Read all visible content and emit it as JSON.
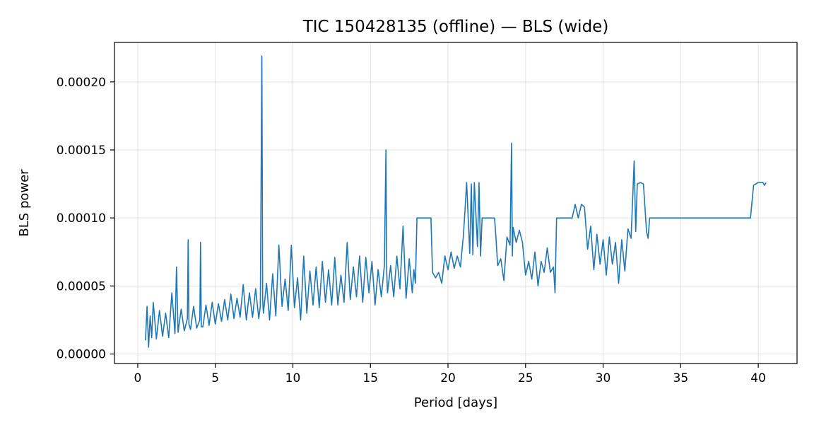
{
  "chart_data": {
    "type": "line",
    "title": "TIC 150428135 (offline) — BLS (wide)",
    "xlabel": "Period [days]",
    "ylabel": "BLS power",
    "xlim": [
      -1.5,
      42.5
    ],
    "ylim": [
      -7e-06,
      0.000229
    ],
    "xticks": [
      0,
      5,
      10,
      15,
      20,
      25,
      30,
      35,
      40
    ],
    "xtick_labels": [
      "0",
      "5",
      "10",
      "15",
      "20",
      "25",
      "30",
      "35",
      "40"
    ],
    "yticks": [
      0,
      5e-05,
      0.0001,
      0.00015,
      0.0002
    ],
    "ytick_labels": [
      "0.00000",
      "0.00005",
      "0.00010",
      "0.00015",
      "0.00020"
    ],
    "grid": true,
    "line_color": "#1f77b4",
    "x": [
      0.5,
      0.6,
      0.7,
      0.8,
      0.9,
      1.0,
      1.2,
      1.4,
      1.6,
      1.8,
      2.0,
      2.2,
      2.4,
      2.5,
      2.6,
      2.8,
      3.0,
      3.2,
      3.25,
      3.3,
      3.4,
      3.6,
      3.8,
      4.0,
      4.05,
      4.1,
      4.2,
      4.4,
      4.6,
      4.8,
      5.0,
      5.2,
      5.4,
      5.6,
      5.8,
      6.0,
      6.2,
      6.4,
      6.6,
      6.8,
      7.0,
      7.2,
      7.4,
      7.6,
      7.8,
      7.9,
      8.0,
      8.05,
      8.1,
      8.3,
      8.5,
      8.7,
      8.9,
      9.1,
      9.3,
      9.5,
      9.7,
      9.9,
      10.1,
      10.3,
      10.5,
      10.7,
      10.9,
      11.1,
      11.3,
      11.5,
      11.7,
      11.9,
      12.1,
      12.3,
      12.5,
      12.7,
      12.9,
      13.1,
      13.3,
      13.5,
      13.7,
      13.9,
      14.1,
      14.3,
      14.5,
      14.7,
      14.9,
      15.1,
      15.3,
      15.5,
      15.7,
      15.9,
      16.0,
      16.05,
      16.1,
      16.3,
      16.5,
      16.7,
      16.9,
      17.1,
      17.3,
      17.5,
      17.7,
      17.8,
      17.9,
      18.0,
      18.9,
      19.0,
      19.2,
      19.4,
      19.6,
      19.8,
      20.0,
      20.2,
      20.4,
      20.6,
      20.8,
      21.0,
      21.2,
      21.4,
      21.5,
      21.6,
      21.7,
      21.9,
      22.0,
      22.1,
      22.2,
      22.4,
      23.0,
      23.1,
      23.2,
      23.4,
      23.6,
      23.8,
      24.0,
      24.1,
      24.15,
      24.2,
      24.4,
      24.6,
      24.8,
      25.0,
      25.2,
      25.4,
      25.6,
      25.8,
      26.0,
      26.2,
      26.4,
      26.6,
      26.8,
      26.9,
      27.0,
      28.0,
      28.2,
      28.4,
      28.6,
      28.8,
      29.0,
      29.2,
      29.4,
      29.6,
      29.8,
      30.0,
      30.2,
      30.4,
      30.6,
      30.8,
      31.0,
      31.2,
      31.4,
      31.6,
      31.8,
      32.0,
      32.1,
      32.2,
      32.4,
      32.6,
      32.8,
      32.9,
      33.0,
      33.1,
      39.5,
      39.7,
      40.0,
      40.3,
      40.4,
      40.5
    ],
    "y": [
      1e-05,
      3.5e-05,
      5e-06,
      2.8e-05,
      1.2e-05,
      3.8e-05,
      1.1e-05,
      3.2e-05,
      1.3e-05,
      3e-05,
      1.2e-05,
      4.5e-05,
      1.5e-05,
      6.4e-05,
      1.6e-05,
      3.3e-05,
      1.7e-05,
      2.6e-05,
      8.4e-05,
      2.2e-05,
      1.8e-05,
      3.5e-05,
      1.9e-05,
      2.5e-05,
      8.2e-05,
      2e-05,
      2e-05,
      3.6e-05,
      2.1e-05,
      3.8e-05,
      2.2e-05,
      3.7e-05,
      2.4e-05,
      4e-05,
      2.5e-05,
      4.4e-05,
      2.6e-05,
      4.1e-05,
      2.7e-05,
      5.1e-05,
      2.5e-05,
      4.5e-05,
      2.7e-05,
      4.8e-05,
      2.6e-05,
      3.5e-05,
      0.000219,
      4e-05,
      3e-05,
      5.2e-05,
      2.5e-05,
      5.9e-05,
      2.8e-05,
      8e-05,
      3.5e-05,
      5.5e-05,
      3.2e-05,
      8e-05,
      3.4e-05,
      5.6e-05,
      2.5e-05,
      7.2e-05,
      3e-05,
      6.1e-05,
      3.6e-05,
      6.4e-05,
      3.4e-05,
      6.8e-05,
      3.8e-05,
      6.2e-05,
      3.6e-05,
      7.1e-05,
      3.6e-05,
      5.8e-05,
      3.8e-05,
      8.2e-05,
      4e-05,
      6.4e-05,
      4.2e-05,
      7.2e-05,
      3.8e-05,
      7.1e-05,
      4.5e-05,
      6.8e-05,
      3.6e-05,
      6.2e-05,
      4.2e-05,
      6.5e-05,
      0.00015,
      6e-05,
      4.5e-05,
      6.5e-05,
      4.2e-05,
      7.2e-05,
      4.8e-05,
      9.4e-05,
      4.1e-05,
      7e-05,
      4.5e-05,
      6.2e-05,
      5.2e-05,
      0.0001,
      0.0001,
      6e-05,
      5.6e-05,
      6e-05,
      5.2e-05,
      7.2e-05,
      6.2e-05,
      7.5e-05,
      6.3e-05,
      7.2e-05,
      6.4e-05,
      8.8e-05,
      0.000126,
      7.4e-05,
      0.000125,
      7.3e-05,
      0.000126,
      7.9e-05,
      0.000126,
      7.2e-05,
      0.0001,
      0.0001,
      0.0001,
      8.4e-05,
      6.5e-05,
      7e-05,
      5.4e-05,
      8.6e-05,
      8e-05,
      0.000155,
      7.2e-05,
      9.3e-05,
      8.2e-05,
      9.1e-05,
      8.2e-05,
      5.8e-05,
      6.8e-05,
      5.5e-05,
      7.5e-05,
      5e-05,
      6.8e-05,
      6e-05,
      7.8e-05,
      6e-05,
      6.4e-05,
      4.5e-05,
      0.0001,
      0.0001,
      0.00011,
      0.0001,
      0.00011,
      0.000108,
      7.7e-05,
      9.4e-05,
      6.2e-05,
      8.8e-05,
      6.6e-05,
      8.4e-05,
      5.8e-05,
      8.6e-05,
      6.6e-05,
      8.2e-05,
      5.2e-05,
      8.4e-05,
      6.1e-05,
      9.2e-05,
      8.5e-05,
      0.000142,
      9e-05,
      0.000125,
      0.000126,
      0.000125,
      9e-05,
      8.5e-05,
      0.0001,
      0.0001,
      0.0001,
      0.000124,
      0.000126,
      0.000126,
      0.000124,
      0.000126
    ]
  }
}
